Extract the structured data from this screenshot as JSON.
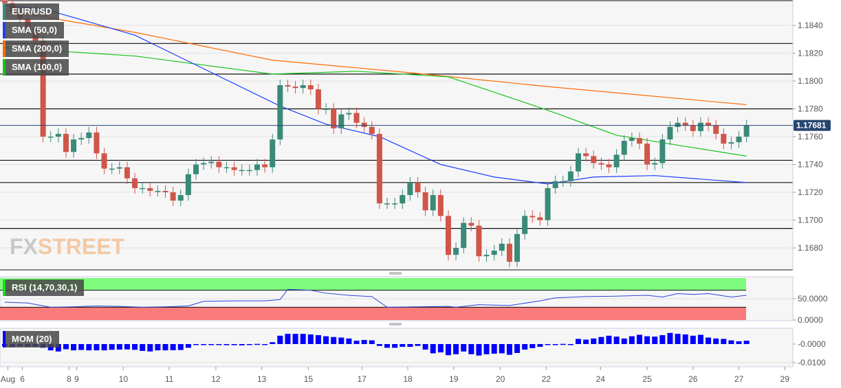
{
  "chart_data": {
    "type": "candlestick",
    "symbol": "EUR/USD",
    "last_price": "1.17681",
    "colors": {
      "up": "#3a8a78",
      "down": "#d0564a",
      "sma50": "#1f3fff",
      "sma200": "#ff6a00",
      "sma100": "#19c419",
      "rsi_line": "#2a43d8",
      "mom_bar": "#0000ff",
      "price_tag": "#27466f"
    },
    "legend": [
      {
        "label": "EUR/USD",
        "color": "#3a8a78"
      },
      {
        "label": "SMA (50,0)",
        "color": "#1f3fff"
      },
      {
        "label": "SMA (200,0)",
        "color": "#ff6a00"
      },
      {
        "label": "SMA (100,0)",
        "color": "#19c419"
      }
    ],
    "y_range": [
      1.1665,
      1.1858
    ],
    "y_ticks": [
      "1.1840",
      "1.1820",
      "1.1800",
      "1.1780",
      "1.1760",
      "1.1740",
      "1.1720",
      "1.1700",
      "1.1680"
    ],
    "horizontal_levels": [
      1.1827,
      1.1805,
      1.178,
      1.1743,
      1.1727,
      1.1694
    ],
    "first_open": 1.1858,
    "close": [
      1.1856,
      1.185,
      1.1845,
      1.1838,
      1.1829,
      1.176,
      1.176,
      1.1762,
      1.1749,
      1.1758,
      1.1759,
      1.1763,
      1.1748,
      1.1737,
      1.1737,
      1.1738,
      1.173,
      1.1723,
      1.1723,
      1.1721,
      1.1721,
      1.172,
      1.1714,
      1.1718,
      1.1733,
      1.174,
      1.1741,
      1.1742,
      1.1738,
      1.1738,
      1.1736,
      1.1736,
      1.1736,
      1.174,
      1.1738,
      1.1758,
      1.1797,
      1.1796,
      1.1795,
      1.1797,
      1.1794,
      1.178,
      1.178,
      1.1766,
      1.1776,
      1.1777,
      1.177,
      1.1767,
      1.1762,
      1.1712,
      1.1712,
      1.1712,
      1.1718,
      1.1727,
      1.172,
      1.1707,
      1.1718,
      1.1703,
      1.1675,
      1.168,
      1.1698,
      1.1696,
      1.1674,
      1.1675,
      1.1678,
      1.1683,
      1.167,
      1.169,
      1.1703,
      1.1702,
      1.17,
      1.1723,
      1.1728,
      1.1728,
      1.1735,
      1.1748,
      1.1746,
      1.1741,
      1.174,
      1.1738,
      1.1747,
      1.1757,
      1.1759,
      1.1755,
      1.174,
      1.1741,
      1.1758,
      1.1767,
      1.177,
      1.1768,
      1.1764,
      1.177,
      1.1768,
      1.1762,
      1.1755,
      1.1756,
      1.176,
      1.1768
    ],
    "sma50": [
      [
        0,
        1.1854
      ],
      [
        5,
        1.1852
      ],
      [
        17,
        1.1833
      ],
      [
        36,
        1.1782
      ],
      [
        42,
        1.1769
      ],
      [
        49,
        1.176
      ],
      [
        57,
        1.174
      ],
      [
        64,
        1.1731
      ],
      [
        71,
        1.1726
      ],
      [
        77,
        1.1731
      ],
      [
        85,
        1.1732
      ],
      [
        97,
        1.1727
      ]
    ],
    "sma200": [
      [
        0,
        1.1851
      ],
      [
        17,
        1.1835
      ],
      [
        35,
        1.1815
      ],
      [
        53,
        1.1806
      ],
      [
        71,
        1.1796
      ],
      [
        89,
        1.1787
      ],
      [
        97,
        1.1783
      ]
    ],
    "sma100": [
      [
        0,
        1.1824
      ],
      [
        17,
        1.1818
      ],
      [
        35,
        1.1805
      ],
      [
        46,
        1.1807
      ],
      [
        58,
        1.1803
      ],
      [
        71,
        1.1779
      ],
      [
        80,
        1.1761
      ],
      [
        89,
        1.1753
      ],
      [
        97,
        1.1746
      ]
    ],
    "rsi": {
      "label": "RSI (14,70,30,1)",
      "levels": [
        70,
        30
      ],
      "y_ticks": [
        "50.0000",
        "0.0000"
      ],
      "points": [
        [
          0,
          42
        ],
        [
          3,
          40
        ],
        [
          6,
          30
        ],
        [
          9,
          31
        ],
        [
          12,
          33
        ],
        [
          15,
          32
        ],
        [
          18,
          30
        ],
        [
          21,
          31
        ],
        [
          24,
          33
        ],
        [
          26,
          44
        ],
        [
          30,
          45
        ],
        [
          34,
          45
        ],
        [
          36,
          48
        ],
        [
          37,
          72
        ],
        [
          40,
          70
        ],
        [
          42,
          63
        ],
        [
          45,
          58
        ],
        [
          48,
          55
        ],
        [
          50,
          30
        ],
        [
          54,
          31
        ],
        [
          58,
          32
        ],
        [
          59,
          30
        ],
        [
          62,
          36
        ],
        [
          66,
          34
        ],
        [
          70,
          45
        ],
        [
          72,
          52
        ],
        [
          76,
          55
        ],
        [
          80,
          56
        ],
        [
          84,
          58
        ],
        [
          86,
          54
        ],
        [
          88,
          62
        ],
        [
          90,
          60
        ],
        [
          92,
          62
        ],
        [
          95,
          54
        ],
        [
          97,
          58
        ]
      ]
    },
    "mom": {
      "label": "MOM (20)",
      "y_ticks": [
        "-0.0000",
        "-0.0100"
      ],
      "values": [
        -0.0012,
        -0.0016,
        -0.0012,
        -0.0014,
        -0.0014,
        -0.002,
        -0.0034,
        -0.004,
        -0.0028,
        -0.0034,
        -0.0032,
        -0.0034,
        -0.0034,
        -0.0034,
        -0.0031,
        -0.003,
        -0.0029,
        -0.0031,
        -0.0037,
        -0.004,
        -0.0034,
        -0.0034,
        -0.0033,
        -0.0032,
        -0.002,
        -0.0005,
        -0.0005,
        -0.0005,
        -0.0001,
        -0.0006,
        -0.0006,
        -0.0007,
        -0.0004,
        0.0001,
        -0.0001,
        0.001,
        0.0045,
        0.0055,
        0.0055,
        0.0055,
        0.0052,
        0.0048,
        0.0042,
        0.0038,
        0.0035,
        0.003,
        0.0018,
        0.0022,
        0.002,
        -0.001,
        -0.002,
        -0.002,
        -0.0015,
        -0.0015,
        -0.001,
        -0.003,
        -0.005,
        -0.0045,
        -0.006,
        -0.0055,
        -0.004,
        -0.0055,
        -0.0062,
        -0.0055,
        -0.0052,
        -0.005,
        -0.0058,
        -0.0048,
        -0.003,
        -0.0022,
        -0.0015,
        -0.0005,
        -0.0003,
        0.0001,
        -0.0002,
        0.0028,
        0.0024,
        0.003,
        0.0038,
        0.0045,
        0.004,
        0.003,
        0.0042,
        0.005,
        0.0042,
        0.004,
        0.0048,
        0.006,
        0.0055,
        0.0052,
        0.0045,
        0.005,
        0.0035,
        0.003,
        0.0028,
        0.002,
        0.0015,
        0.0018
      ]
    },
    "x_ticks": [
      {
        "label": "Aug",
        "at": 0.4
      },
      {
        "label": "6",
        "at": 2.3
      },
      {
        "label": "8",
        "at": 8.4
      },
      {
        "label": "9",
        "at": 9.4
      },
      {
        "label": "10",
        "at": 15.5
      },
      {
        "label": "11",
        "at": 21.5
      },
      {
        "label": "12",
        "at": 27.6
      },
      {
        "label": "13",
        "at": 33.6
      },
      {
        "label": "15",
        "at": 39.7
      },
      {
        "label": "17",
        "at": 46.7
      },
      {
        "label": "18",
        "at": 52.7
      },
      {
        "label": "19",
        "at": 58.7
      },
      {
        "label": "20",
        "at": 64.8
      },
      {
        "label": "22",
        "at": 70.8
      },
      {
        "label": "24",
        "at": 77.9
      },
      {
        "label": "25",
        "at": 84.0
      },
      {
        "label": "26",
        "at": 90.0
      },
      {
        "label": "27",
        "at": 96.0
      },
      {
        "label": "29",
        "at": 102.0
      }
    ]
  },
  "watermark": {
    "part1": "FX",
    "part2": "STREET"
  }
}
